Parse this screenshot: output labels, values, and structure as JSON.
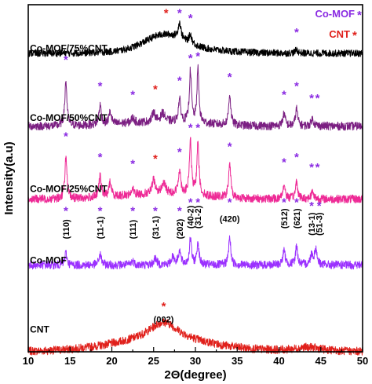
{
  "chart_data": {
    "type": "line",
    "xlabel": "2Θ(degree)",
    "ylabel": "Intensity(a.u)",
    "xlim": [
      10,
      50
    ],
    "xticks": [
      "10",
      "15",
      "20",
      "25",
      "30",
      "35",
      "40",
      "45",
      "50"
    ],
    "yticks_shown": false,
    "legend": {
      "placement": "top-right",
      "items": [
        {
          "label": "Co-MOF",
          "marker": "*",
          "color": "#8a2be2"
        },
        {
          "label": "CNT",
          "marker": "*",
          "color": "#e0201b"
        }
      ]
    },
    "colors": {
      "Co-MOF/75%CNT": "#000000",
      "Co-MOF/50%CNT": "#7b1f82",
      "Co-MOF/25%CNT": "#ee2a96",
      "Co-MOF": "#9b30ff",
      "CNT": "#e0201b"
    },
    "series": [
      {
        "name": "CNT",
        "baseline": 0.0,
        "noise": 0.012,
        "color": "#e0201b",
        "peaks": [
          [
            26.2,
            0.055,
            2.2
          ],
          [
            43.5,
            0.012,
            2.0
          ]
        ],
        "broad": [
          [
            26.0,
            0.03,
            6.0
          ]
        ]
      },
      {
        "name": "Co-MOF",
        "baseline": 0.25,
        "noise": 0.012,
        "color": "#9b30ff",
        "peaks": [
          [
            14.5,
            0.035,
            0.15
          ],
          [
            18.6,
            0.03,
            0.18
          ],
          [
            22.5,
            0.012,
            0.2
          ],
          [
            25.2,
            0.02,
            0.2
          ],
          [
            27.3,
            0.025,
            0.2
          ],
          [
            28.1,
            0.04,
            0.18
          ],
          [
            29.4,
            0.075,
            0.15
          ],
          [
            30.3,
            0.065,
            0.15
          ],
          [
            34.1,
            0.08,
            0.15
          ],
          [
            40.6,
            0.04,
            0.18
          ],
          [
            42.1,
            0.055,
            0.15
          ],
          [
            43.9,
            0.03,
            0.18
          ],
          [
            44.4,
            0.045,
            0.18
          ]
        ],
        "broad": []
      },
      {
        "name": "Co-MOF/25%CNT",
        "baseline": 0.44,
        "noise": 0.012,
        "color": "#ee2a96",
        "peaks": [
          [
            14.5,
            0.12,
            0.15
          ],
          [
            18.6,
            0.06,
            0.18
          ],
          [
            19.8,
            0.04,
            0.18
          ],
          [
            22.5,
            0.015,
            0.2
          ],
          [
            25.0,
            0.04,
            0.2
          ],
          [
            26.2,
            0.03,
            0.3
          ],
          [
            28.1,
            0.07,
            0.17
          ],
          [
            29.4,
            0.155,
            0.15
          ],
          [
            30.3,
            0.16,
            0.14
          ],
          [
            34.1,
            0.1,
            0.15
          ],
          [
            40.6,
            0.04,
            0.18
          ],
          [
            42.1,
            0.05,
            0.16
          ],
          [
            44.0,
            0.02,
            0.2
          ]
        ],
        "broad": [
          [
            26.0,
            0.015,
            5.0
          ]
        ]
      },
      {
        "name": "Co-MOF/50%CNT",
        "baseline": 0.65,
        "noise": 0.012,
        "color": "#7b1f82",
        "peaks": [
          [
            14.5,
            0.13,
            0.15
          ],
          [
            18.6,
            0.055,
            0.18
          ],
          [
            19.8,
            0.035,
            0.18
          ],
          [
            22.5,
            0.015,
            0.2
          ],
          [
            25.0,
            0.03,
            0.2
          ],
          [
            26.1,
            0.025,
            0.3
          ],
          [
            28.1,
            0.065,
            0.17
          ],
          [
            29.4,
            0.15,
            0.15
          ],
          [
            30.3,
            0.155,
            0.14
          ],
          [
            34.1,
            0.09,
            0.15
          ],
          [
            40.6,
            0.035,
            0.18
          ],
          [
            42.1,
            0.05,
            0.16
          ],
          [
            44.0,
            0.02,
            0.2
          ]
        ],
        "broad": [
          [
            26.0,
            0.012,
            5.0
          ]
        ]
      },
      {
        "name": "Co-MOF/75%CNT",
        "baseline": 0.86,
        "noise": 0.01,
        "color": "#000000",
        "peaks": [
          [
            28.1,
            0.045,
            0.2
          ],
          [
            29.4,
            0.025,
            0.2
          ],
          [
            42.1,
            0.01,
            0.2
          ]
        ],
        "broad": [
          [
            26.3,
            0.04,
            2.2
          ],
          [
            27.5,
            0.015,
            5.0
          ]
        ]
      }
    ],
    "series_labels": [
      {
        "text": "CNT",
        "x": 10.2,
        "y": 0.055
      },
      {
        "text": "Co-MOF",
        "x": 10.2,
        "y": 0.255
      },
      {
        "text": "Co-MOF/25%CNT",
        "x": 10.2,
        "y": 0.46
      },
      {
        "text": "Co-MOF/50%CNT",
        "x": 10.2,
        "y": 0.665
      },
      {
        "text": "Co-MOF/75%CNT",
        "x": 10.2,
        "y": 0.865
      }
    ],
    "annotations": {
      "hkl": [
        {
          "label": "(002)",
          "x": 26.2,
          "y": 0.085
        },
        {
          "label": "(110)",
          "x": 14.5,
          "y": 0.325
        },
        {
          "label": "(11-1)",
          "x": 18.6,
          "y": 0.325
        },
        {
          "label": "(111)",
          "x": 22.5,
          "y": 0.325
        },
        {
          "label": "(31-1)",
          "x": 25.2,
          "y": 0.325
        },
        {
          "label": "(202)",
          "x": 28.1,
          "y": 0.325
        },
        {
          "label": "(40-2)",
          "x": 29.4,
          "y": 0.355
        },
        {
          "label": "(31-2)",
          "x": 30.3,
          "y": 0.355
        },
        {
          "label": "(420)",
          "x": 34.1,
          "y": 0.375
        },
        {
          "label": "(512)",
          "x": 40.6,
          "y": 0.355
        },
        {
          "label": "(621)",
          "x": 42.1,
          "y": 0.355
        },
        {
          "label": "(13-1)",
          "x": 43.9,
          "y": 0.335
        },
        {
          "label": "(51-3)",
          "x": 44.8,
          "y": 0.335
        }
      ],
      "stars": [
        {
          "x": 26.2,
          "y": 0.12,
          "kind": "CNT"
        },
        {
          "x": 14.5,
          "y": 0.395,
          "kind": "Co-MOF"
        },
        {
          "x": 18.6,
          "y": 0.395,
          "kind": "Co-MOF"
        },
        {
          "x": 22.5,
          "y": 0.395,
          "kind": "Co-MOF"
        },
        {
          "x": 25.2,
          "y": 0.395,
          "kind": "Co-MOF"
        },
        {
          "x": 28.1,
          "y": 0.395,
          "kind": "Co-MOF"
        },
        {
          "x": 29.4,
          "y": 0.42,
          "kind": "Co-MOF"
        },
        {
          "x": 30.3,
          "y": 0.42,
          "kind": "Co-MOF"
        },
        {
          "x": 34.1,
          "y": 0.42,
          "kind": "Co-MOF"
        },
        {
          "x": 40.6,
          "y": 0.42,
          "kind": "Co-MOF"
        },
        {
          "x": 42.1,
          "y": 0.42,
          "kind": "Co-MOF"
        },
        {
          "x": 43.9,
          "y": 0.41,
          "kind": "Co-MOF"
        },
        {
          "x": 44.8,
          "y": 0.41,
          "kind": "Co-MOF"
        },
        {
          "x": 14.5,
          "y": 0.61,
          "kind": "Co-MOF"
        },
        {
          "x": 18.6,
          "y": 0.55,
          "kind": "Co-MOF"
        },
        {
          "x": 22.5,
          "y": 0.53,
          "kind": "Co-MOF"
        },
        {
          "x": 25.2,
          "y": 0.545,
          "kind": "CNT"
        },
        {
          "x": 28.1,
          "y": 0.565,
          "kind": "Co-MOF"
        },
        {
          "x": 29.4,
          "y": 0.635,
          "kind": "Co-MOF"
        },
        {
          "x": 30.3,
          "y": 0.635,
          "kind": "Co-MOF"
        },
        {
          "x": 34.1,
          "y": 0.58,
          "kind": "Co-MOF"
        },
        {
          "x": 40.6,
          "y": 0.535,
          "kind": "Co-MOF"
        },
        {
          "x": 42.1,
          "y": 0.55,
          "kind": "Co-MOF"
        },
        {
          "x": 43.9,
          "y": 0.52,
          "kind": "Co-MOF"
        },
        {
          "x": 44.6,
          "y": 0.52,
          "kind": "Co-MOF"
        },
        {
          "x": 14.5,
          "y": 0.83,
          "kind": "Co-MOF"
        },
        {
          "x": 18.6,
          "y": 0.755,
          "kind": "Co-MOF"
        },
        {
          "x": 22.5,
          "y": 0.73,
          "kind": "Co-MOF"
        },
        {
          "x": 25.2,
          "y": 0.745,
          "kind": "CNT"
        },
        {
          "x": 28.1,
          "y": 0.77,
          "kind": "Co-MOF"
        },
        {
          "x": 29.4,
          "y": 0.835,
          "kind": "Co-MOF"
        },
        {
          "x": 30.3,
          "y": 0.84,
          "kind": "Co-MOF"
        },
        {
          "x": 34.1,
          "y": 0.78,
          "kind": "Co-MOF"
        },
        {
          "x": 40.6,
          "y": 0.73,
          "kind": "Co-MOF"
        },
        {
          "x": 42.1,
          "y": 0.755,
          "kind": "Co-MOF"
        },
        {
          "x": 43.9,
          "y": 0.72,
          "kind": "Co-MOF"
        },
        {
          "x": 44.6,
          "y": 0.72,
          "kind": "Co-MOF"
        },
        {
          "x": 26.5,
          "y": 0.965,
          "kind": "CNT"
        },
        {
          "x": 28.1,
          "y": 0.965,
          "kind": "Co-MOF"
        },
        {
          "x": 29.4,
          "y": 0.95,
          "kind": "Co-MOF"
        },
        {
          "x": 42.1,
          "y": 0.91,
          "kind": "Co-MOF"
        }
      ]
    }
  }
}
